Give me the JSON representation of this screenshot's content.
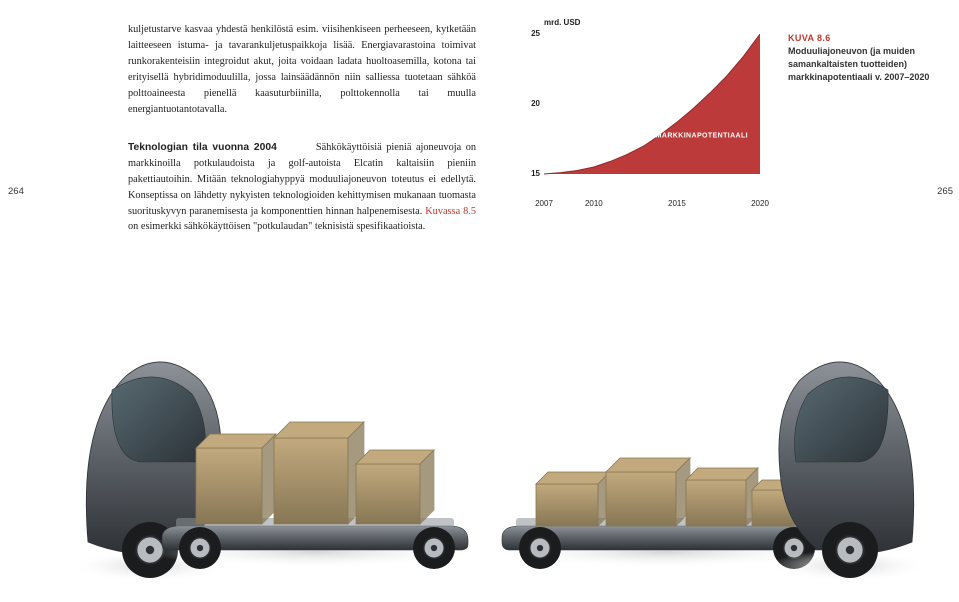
{
  "page": {
    "left_number": "264",
    "right_number": "265"
  },
  "textcol": {
    "para1": "kuljetustarve kasvaa yhdestä henkilöstä esim. viisihenkiseen perheeseen, kytketään laitteeseen istuma- ja tavarankuljetuspaikkoja lisää. Energiavarastoina toimivat runkorakenteisiin integroidut akut, joita voidaan ladata huoltoasemilla, kotona tai erityisellä hybridimoduulilla, jossa lainsäädännön niin salliessa tuotetaan sähköä polttoaineesta pienellä kaasuturbiinilla, polttokennolla tai muulla energiantuotantotavalla.",
    "tech_heading": "Teknologian tila vuonna 2004",
    "para2_tail": "Sähkökäyttöisiä pieniä ajoneuvoja on markkinoilla potkulaudoista ja golf-autoista Elcatin kaltaisiin pieniin pakettiautoihin. Mitään teknologiahyppyä moduuliajoneuvon toteutus ei edellytä. Konseptissa on lähdetty nykyisten teknologioiden kehittymisen mukanaan tuomasta suorituskyvyn paranemisesta ja komponenttien hinnan halpenemisesta. ",
    "fig_ref": "Kuvassa 8.5",
    "para2_end": " on esimerkki sähkökäyttöisen \"potkulaudan\" teknisistä spesifikaatioista."
  },
  "chart": {
    "unit_label": "mrd. USD",
    "type": "area",
    "y_ticks": [
      15,
      20,
      25
    ],
    "y_min": 15,
    "y_max": 25,
    "x_ticks": [
      2007,
      2010,
      2015,
      2020
    ],
    "x_min": 2007,
    "x_max": 2020,
    "annotation": "MARKKINAPOTENTIAALI",
    "series": {
      "points": [
        [
          2007,
          15.0
        ],
        [
          2008,
          15.1
        ],
        [
          2009,
          15.25
        ],
        [
          2010,
          15.5
        ],
        [
          2011,
          15.9
        ],
        [
          2012,
          16.4
        ],
        [
          2013,
          17.0
        ],
        [
          2014,
          17.8
        ],
        [
          2015,
          18.7
        ],
        [
          2016,
          19.7
        ],
        [
          2017,
          20.8
        ],
        [
          2018,
          22.0
        ],
        [
          2019,
          23.4
        ],
        [
          2020,
          25.0
        ]
      ],
      "fill_color": "#bd3a3a",
      "line_color": "#8f2a2a",
      "line_width": 1.0
    },
    "tick_fontsize": 8,
    "background_color": "#ffffff"
  },
  "figure_caption": {
    "num": "KUVA 8.6",
    "body": "Moduuliajoneuvon (ja muiden samankaltaisten tuotteiden) markkinapotentiaali v. 2007–2020"
  },
  "vehicle_render": {
    "body_color": "#5b6066",
    "body_highlight": "#8d9298",
    "body_shadow": "#2e3236",
    "glass_color": "#2b3338",
    "glass_highlight": "#596a72",
    "wheel_color": "#1a1c1e",
    "rim_color": "#b8bcc0",
    "box_fill": "#c2a97e",
    "box_edge": "#877755",
    "floor_shadow": "#d6d6d6"
  }
}
